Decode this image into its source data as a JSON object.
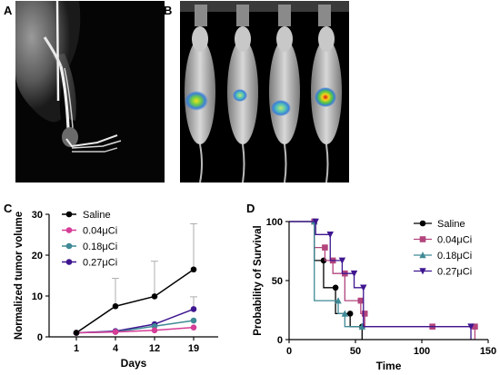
{
  "panels": {
    "a": {
      "label": "A"
    },
    "b": {
      "label": "B"
    },
    "c": {
      "label": "C"
    },
    "d": {
      "label": "D"
    }
  },
  "chart_data": [
    {
      "panel": "C",
      "type": "line",
      "xlabel": "Days",
      "ylabel": "Normalized tumor volume",
      "categories": [
        "1",
        "4",
        "12",
        "19"
      ],
      "ylim": [
        0,
        30
      ],
      "yticks": [
        0,
        10,
        20,
        30
      ],
      "error_bars": "upper standard deviation",
      "legend_position": "top-left, inside plot",
      "series": [
        {
          "name": "Saline",
          "color": "#000000",
          "marker": "circle",
          "values": [
            1,
            7.5,
            9.9,
            16.5
          ],
          "err": [
            0,
            6.8,
            8.6,
            11.2
          ]
        },
        {
          "name": "0.04μCi",
          "color": "#d63d97",
          "marker": "circle",
          "values": [
            1,
            1.2,
            1.6,
            2.3
          ],
          "err": [
            0,
            0,
            0,
            0
          ]
        },
        {
          "name": "0.18μCi",
          "color": "#3f8a96",
          "marker": "circle",
          "values": [
            1,
            1.2,
            2.6,
            4
          ],
          "err": [
            0,
            0,
            0,
            0
          ]
        },
        {
          "name": "0.27μCi",
          "color": "#3e1690",
          "marker": "circle",
          "values": [
            1,
            1.4,
            3.1,
            6.8
          ],
          "err": [
            0,
            0,
            0,
            3
          ]
        }
      ]
    },
    {
      "panel": "D",
      "type": "line",
      "subtype": "kaplan-meier step",
      "xlabel": "Time",
      "ylabel": "Probability of Survival",
      "xlim": [
        0,
        150
      ],
      "xticks": [
        0,
        50,
        100,
        150
      ],
      "ylim": [
        0,
        100
      ],
      "yticks": [
        0,
        50,
        100
      ],
      "legend_position": "top-right",
      "series": [
        {
          "name": "Saline",
          "color": "#000000",
          "marker": "circle",
          "steps": [
            [
              0,
              100
            ],
            [
              19,
              67
            ],
            [
              26,
              44
            ],
            [
              35,
              22
            ],
            [
              46,
              11
            ],
            [
              55,
              0
            ]
          ]
        },
        {
          "name": "0.04μCi",
          "color": "#b2457d",
          "marker": "square",
          "steps": [
            [
              0,
              100
            ],
            [
              19,
              78
            ],
            [
              27,
              67
            ],
            [
              33,
              56
            ],
            [
              42,
              33
            ],
            [
              54,
              22
            ],
            [
              57,
              11
            ],
            [
              108,
              11
            ],
            [
              140,
              0
            ]
          ]
        },
        {
          "name": "0.18μCi",
          "color": "#3f8a96",
          "marker": "triangle-up",
          "steps": [
            [
              0,
              100
            ],
            [
              19,
              33
            ],
            [
              37,
              22
            ],
            [
              42,
              11
            ],
            [
              55,
              11
            ]
          ]
        },
        {
          "name": "0.27μCi",
          "color": "#3e1690",
          "marker": "triangle-down",
          "steps": [
            [
              0,
              100
            ],
            [
              20,
              89
            ],
            [
              31,
              67
            ],
            [
              40,
              56
            ],
            [
              49,
              44
            ],
            [
              56,
              11
            ],
            [
              137,
              0
            ]
          ]
        }
      ]
    }
  ]
}
